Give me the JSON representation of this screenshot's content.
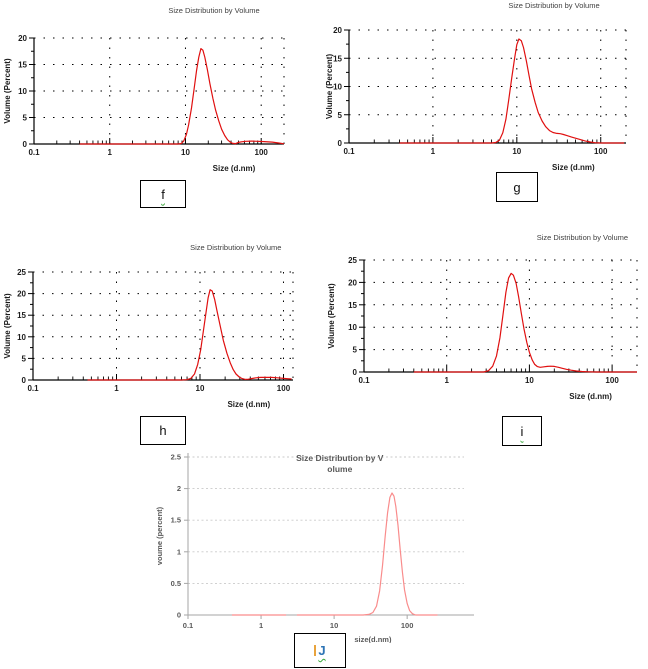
{
  "panels": [
    {
      "chart": "f",
      "text": "f",
      "style": "squiggle"
    },
    {
      "chart": "g",
      "text": "g",
      "style": "plain"
    },
    {
      "chart": "h",
      "text": "h",
      "style": "plain"
    },
    {
      "chart": "i",
      "text": "i",
      "style": "squiggle"
    },
    {
      "chart": "j",
      "text": "J",
      "style": "blue-cursor"
    }
  ],
  "chart_data": [
    {
      "id": "f",
      "type": "line",
      "style": "malvern",
      "title": "Size Distribution by Volume",
      "xlabel": "Size (d.nm)",
      "ylabel": "Volume (Percent)",
      "xscale": "log",
      "xlim": [
        0.1,
        200
      ],
      "xticks": [
        0.1,
        1,
        10,
        100
      ],
      "grid_x": [
        1,
        10,
        100
      ],
      "ylim": [
        0,
        20
      ],
      "yticks": [
        0,
        5,
        10,
        15,
        20
      ],
      "yminor_step": 2.5,
      "axis_color": "#000000",
      "series": [
        {
          "name": "volume distribution",
          "color": "#e01010",
          "segments": [
            [
              [
                0.4,
                0
              ],
              [
                2,
                0
              ],
              [
                5,
                0
              ],
              [
                8,
                0
              ],
              [
                8.8,
                0.1
              ],
              [
                9.5,
                0.6
              ],
              [
                10.3,
                1.8
              ],
              [
                11,
                3.6
              ],
              [
                12,
                6.8
              ],
              [
                13,
                10.4
              ],
              [
                14,
                13.8
              ],
              [
                15,
                16.4
              ],
              [
                16,
                18
              ],
              [
                17,
                17.7
              ],
              [
                18,
                16.4
              ],
              [
                19.5,
                14
              ],
              [
                21,
                11.4
              ],
              [
                23,
                8.6
              ],
              [
                25,
                6.4
              ],
              [
                27.5,
                4.4
              ],
              [
                30,
                2.8
              ],
              [
                33,
                1.6
              ],
              [
                36,
                0.8
              ],
              [
                39,
                0.35
              ],
              [
                42,
                0.12
              ],
              [
                46,
                0.08
              ],
              [
                50,
                0.3
              ],
              [
                55,
                0.42
              ],
              [
                62,
                0.5
              ],
              [
                75,
                0.55
              ],
              [
                90,
                0.5
              ],
              [
                110,
                0.45
              ],
              [
                140,
                0.35
              ],
              [
                170,
                0.18
              ],
              [
                200,
                0.03
              ]
            ]
          ]
        }
      ]
    },
    {
      "id": "g",
      "type": "line",
      "style": "malvern",
      "title": "Size Distribution by Volume",
      "xlabel": "Size (d.nm)",
      "ylabel": "Volume (Percent)",
      "xscale": "log",
      "xlim": [
        0.1,
        200
      ],
      "xticks": [
        0.1,
        1,
        10,
        100
      ],
      "grid_x": [
        1,
        10,
        100
      ],
      "ylim": [
        0,
        20
      ],
      "yticks": [
        0,
        5,
        10,
        15,
        20
      ],
      "yminor_step": 2.5,
      "axis_color": "#000000",
      "series": [
        {
          "name": "volume distribution",
          "color": "#e01010",
          "segments": [
            [
              [
                0.4,
                0
              ],
              [
                2,
                0
              ],
              [
                5,
                0
              ],
              [
                5.6,
                0.08
              ],
              [
                6.2,
                0.5
              ],
              [
                6.8,
                1.8
              ],
              [
                7.4,
                4.2
              ],
              [
                8,
                7.6
              ],
              [
                8.7,
                11.6
              ],
              [
                9.4,
                15
              ],
              [
                10,
                17.4
              ],
              [
                10.6,
                18.4
              ],
              [
                11.3,
                18.1
              ],
              [
                12,
                16.9
              ],
              [
                13,
                14.5
              ],
              [
                14,
                11.9
              ],
              [
                15,
                9.6
              ],
              [
                16.5,
                7.2
              ],
              [
                18,
                5.4
              ],
              [
                20,
                3.9
              ],
              [
                22,
                2.9
              ],
              [
                24.5,
                2.2
              ],
              [
                27,
                1.85
              ],
              [
                30,
                1.7
              ],
              [
                33,
                1.65
              ],
              [
                36,
                1.5
              ],
              [
                40,
                1.3
              ],
              [
                45,
                1.05
              ],
              [
                50,
                0.85
              ],
              [
                57,
                0.6
              ],
              [
                65,
                0.38
              ],
              [
                75,
                0.18
              ],
              [
                85,
                0.06
              ],
              [
                95,
                0.01
              ],
              [
                110,
                0
              ],
              [
                150,
                0
              ],
              [
                190,
                0
              ]
            ]
          ]
        }
      ]
    },
    {
      "id": "h",
      "type": "line",
      "style": "malvern",
      "title": "Size Distribution by Volume",
      "xlabel": "Size (d.nm)",
      "ylabel": "Volume (Percent)",
      "xscale": "log",
      "xlim": [
        0.1,
        130
      ],
      "xticks": [
        0.1,
        1,
        10,
        100
      ],
      "grid_x": [
        1,
        10,
        100
      ],
      "ylim": [
        0,
        25
      ],
      "yticks": [
        0,
        5,
        10,
        15,
        20,
        25
      ],
      "yminor_step": 2.5,
      "axis_color": "#000000",
      "series": [
        {
          "name": "volume distribution",
          "color": "#e01010",
          "segments": [
            [
              [
                0.45,
                0
              ],
              [
                2,
                0
              ],
              [
                6,
                0
              ],
              [
                7,
                0.08
              ],
              [
                7.8,
                0.4
              ],
              [
                8.6,
                1.4
              ],
              [
                9.4,
                3.6
              ],
              [
                10.2,
                7
              ],
              [
                11,
                11.4
              ],
              [
                11.8,
                15.6
              ],
              [
                12.5,
                19
              ],
              [
                13.2,
                20.9
              ],
              [
                14,
                20.6
              ],
              [
                15,
                18.6
              ],
              [
                16,
                16
              ],
              [
                17.5,
                12.4
              ],
              [
                19,
                9.2
              ],
              [
                21,
                6.2
              ],
              [
                23,
                4
              ],
              [
                25,
                2.4
              ],
              [
                27,
                1.4
              ],
              [
                29.5,
                0.7
              ],
              [
                32,
                0.32
              ],
              [
                35,
                0.15
              ],
              [
                38,
                0.18
              ],
              [
                42,
                0.35
              ],
              [
                47,
                0.5
              ],
              [
                53,
                0.6
              ],
              [
                62,
                0.63
              ],
              [
                72,
                0.6
              ],
              [
                85,
                0.5
              ],
              [
                100,
                0.38
              ],
              [
                112,
                0.3
              ],
              [
                125,
                0.22
              ]
            ]
          ]
        }
      ]
    },
    {
      "id": "i",
      "type": "line",
      "style": "malvern",
      "title": "Size Distribution by Volume",
      "xlabel": "Size (d.nm)",
      "ylabel": "Volume (Percent)",
      "xscale": "log",
      "xlim": [
        0.1,
        200
      ],
      "xticks": [
        0.1,
        1,
        10,
        100
      ],
      "grid_x": [
        1,
        10,
        100
      ],
      "ylim": [
        0,
        25
      ],
      "yticks": [
        0,
        5,
        10,
        15,
        20,
        25
      ],
      "yminor_step": 2.5,
      "axis_color": "#000000",
      "series": [
        {
          "name": "volume distribution",
          "color": "#e01010",
          "segments": [
            [
              [
                0.4,
                0
              ],
              [
                1.5,
                0
              ],
              [
                2.8,
                0
              ],
              [
                3.2,
                0.3
              ],
              [
                3.6,
                1.3
              ],
              [
                4,
                3.6
              ],
              [
                4.4,
                7.6
              ],
              [
                4.8,
                12.8
              ],
              [
                5.2,
                17.8
              ],
              [
                5.6,
                21
              ],
              [
                6,
                22
              ],
              [
                6.4,
                21.6
              ],
              [
                6.9,
                19.8
              ],
              [
                7.4,
                16.8
              ],
              [
                8,
                13
              ],
              [
                8.6,
                9.6
              ],
              [
                9.3,
                6.6
              ],
              [
                10,
                4.4
              ],
              [
                10.8,
                2.7
              ],
              [
                11.6,
                1.7
              ],
              [
                12.5,
                1.2
              ],
              [
                13.5,
                1.05
              ],
              [
                15,
                1.15
              ],
              [
                16.5,
                1.25
              ],
              [
                18,
                1.3
              ],
              [
                20,
                1.25
              ],
              [
                22.5,
                1.05
              ],
              [
                25,
                0.82
              ],
              [
                28,
                0.6
              ],
              [
                32,
                0.4
              ],
              [
                37,
                0.22
              ],
              [
                43,
                0.12
              ],
              [
                52,
                0.05
              ],
              [
                65,
                0.01
              ],
              [
                85,
                0
              ],
              [
                120,
                0
              ],
              [
                200,
                0
              ]
            ]
          ]
        }
      ]
    },
    {
      "id": "j",
      "type": "line",
      "style": "excel",
      "title_lines": [
        "Size Distribution by V",
        "olume"
      ],
      "xlabel": "size(d.nm)",
      "ylabel": "voume  (percent)",
      "xscale": "log",
      "xlim": [
        0.1,
        600
      ],
      "xticks": [
        0.1,
        1,
        10,
        100
      ],
      "ylim": [
        0,
        2.5
      ],
      "yticks": [
        0,
        0.5,
        1,
        1.5,
        2,
        2.5
      ],
      "grid_color": "#c9c9c9",
      "axis_color": "#a6a6a6",
      "series": [
        {
          "name": "volume distribution",
          "color": "#f98c8c",
          "segments": [
            [
              [
                0.4,
                0
              ],
              [
                2.2,
                0
              ]
            ],
            [
              [
                3.1,
                0
              ],
              [
                8,
                0
              ],
              [
                15,
                0
              ],
              [
                25,
                0
              ],
              [
                30,
                0.01
              ],
              [
                34,
                0.04
              ],
              [
                38,
                0.14
              ],
              [
                42,
                0.38
              ],
              [
                46,
                0.78
              ],
              [
                50,
                1.25
              ],
              [
                54,
                1.62
              ],
              [
                58,
                1.86
              ],
              [
                62,
                1.93
              ],
              [
                66,
                1.88
              ],
              [
                70,
                1.72
              ],
              [
                75,
                1.42
              ],
              [
                80,
                1.05
              ],
              [
                86,
                0.68
              ],
              [
                92,
                0.4
              ],
              [
                100,
                0.18
              ],
              [
                108,
                0.07
              ],
              [
                118,
                0.02
              ],
              [
                130,
                0
              ],
              [
                160,
                0
              ],
              [
                210,
                0
              ],
              [
                260,
                0
              ]
            ]
          ]
        }
      ]
    }
  ]
}
